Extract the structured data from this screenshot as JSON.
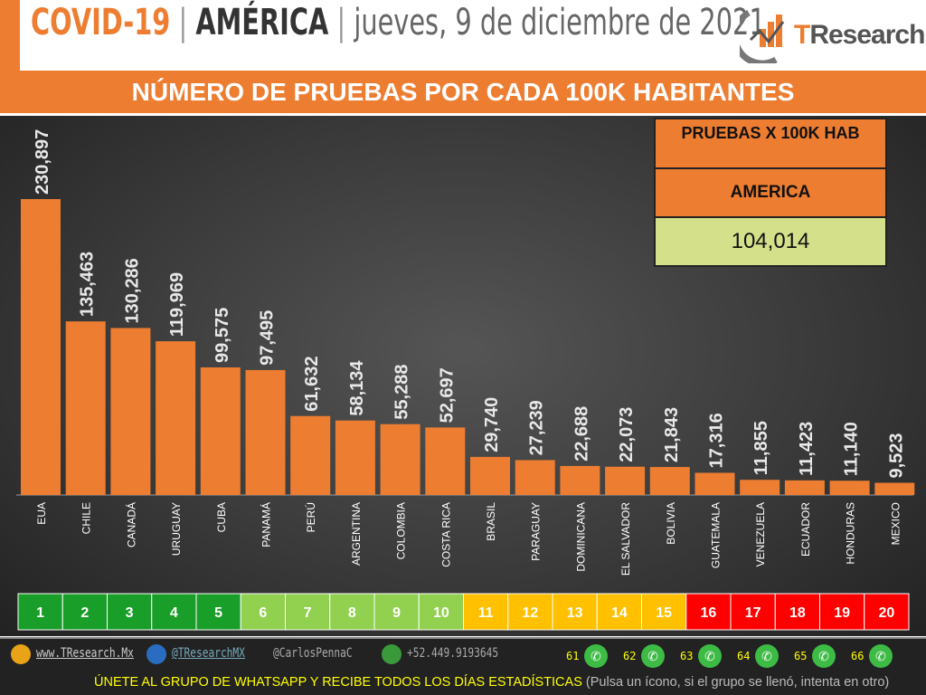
{
  "header": {
    "covid": "COVID-19",
    "sep": "|",
    "region": "AMÉRICA",
    "date": "jueves, 9 de diciembre de 2021",
    "logo_text": "TResearch"
  },
  "band_title": "NÚMERO DE PRUEBAS POR CADA 100K HABITANTES",
  "summary": {
    "header": "PRUEBAS X 100K HAB",
    "region": "AMERICA",
    "value": "104,014"
  },
  "colors": {
    "bar": "#ed7d31",
    "rank_dark_green": "#1a9e2a",
    "rank_light_green": "#92d050",
    "rank_yellow": "#ffc000",
    "rank_red": "#ff0000"
  },
  "chart_data": {
    "type": "bar",
    "categories": [
      "EUA",
      "CHILE",
      "CANADÁ",
      "URUGUAY",
      "CUBA",
      "PANAMÁ",
      "PERÚ",
      "ARGENTINA",
      "COLOMBIA",
      "COSTA RICA",
      "BRASIL",
      "PARAGUAY",
      "DOMINICANA",
      "EL SALVADOR",
      "BOLIVIA",
      "GUATEMALA",
      "VENEZUELA",
      "ECUADOR",
      "HONDURAS",
      "MEXICO"
    ],
    "values": [
      230897,
      135463,
      130286,
      119969,
      99575,
      97495,
      61632,
      58134,
      55288,
      52697,
      29740,
      27239,
      22688,
      22073,
      21843,
      17316,
      11855,
      11423,
      11140,
      9523
    ],
    "labels": [
      "230,897",
      "135,463",
      "130,286",
      "119,969",
      "99,575",
      "97,495",
      "61,632",
      "58,134",
      "55,288",
      "52,697",
      "29,740",
      "27,239",
      "22,688",
      "22,073",
      "21,843",
      "17,316",
      "11,855",
      "11,423",
      "11,140",
      "9,523"
    ],
    "ranks": [
      "1",
      "2",
      "3",
      "4",
      "5",
      "6",
      "7",
      "8",
      "9",
      "10",
      "11",
      "12",
      "13",
      "14",
      "15",
      "16",
      "17",
      "18",
      "19",
      "20"
    ],
    "grid": false
  },
  "footer": {
    "web": "www.TResearch.Mx",
    "twitter": "@TResearchMX",
    "personal": "@CarlosPennaC",
    "phone": "+52.449.9193645",
    "groups": [
      "61",
      "62",
      "63",
      "64",
      "65",
      "66"
    ],
    "join": "ÚNETE AL GRUPO DE WHATSAPP Y RECIBE TODOS LOS DÍAS ESTADÍSTICAS",
    "note": "(Pulsa un ícono, si el grupo se llenó, intenta en otro)"
  }
}
